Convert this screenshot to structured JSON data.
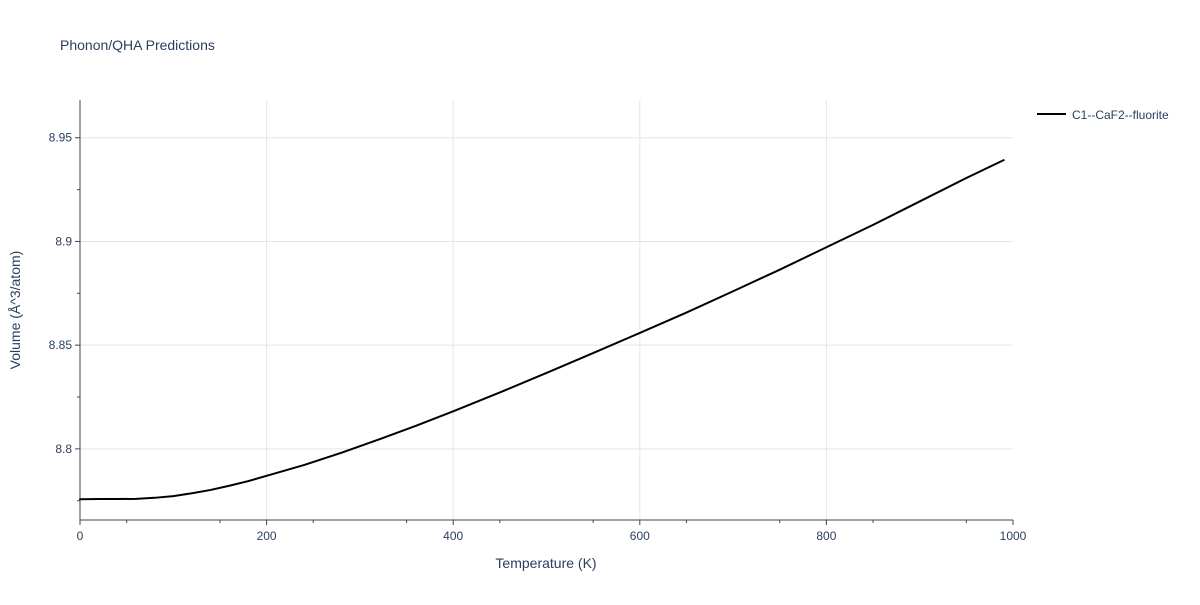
{
  "chart_data": {
    "type": "line",
    "title": "Phonon/QHA Predictions",
    "xlabel": "Temperature (K)",
    "ylabel": "Volume (Å^3/atom)",
    "xlim": [
      0,
      1000
    ],
    "ylim": [
      8.7657,
      8.9682
    ],
    "x_ticks": [
      0,
      200,
      400,
      600,
      800,
      1000
    ],
    "x_tick_labels": [
      "0",
      "200",
      "400",
      "600",
      "800",
      "1000"
    ],
    "y_ticks": [
      8.8,
      8.85,
      8.9,
      8.95
    ],
    "y_tick_labels": [
      "8.8",
      "8.85",
      "8.9",
      "8.95"
    ],
    "grid": true,
    "legend_position": "top-right",
    "colors": {
      "series": "#000000",
      "grid": "#e5e5e5",
      "axis": "#444444",
      "text": "#2a3f5f"
    },
    "series": [
      {
        "name": "C1--CaF2--fluorite",
        "x": [
          0,
          20,
          40,
          60,
          80,
          100,
          120,
          140,
          160,
          180,
          200,
          240,
          280,
          320,
          360,
          400,
          450,
          500,
          550,
          600,
          650,
          700,
          750,
          800,
          850,
          900,
          950,
          990
        ],
        "y": [
          8.7757,
          8.7758,
          8.7758,
          8.7759,
          8.7764,
          8.7772,
          8.7786,
          8.7802,
          8.7822,
          8.7844,
          8.787,
          8.7922,
          8.7981,
          8.8045,
          8.8111,
          8.8181,
          8.8272,
          8.8366,
          8.8462,
          8.8559,
          8.8657,
          8.876,
          8.8864,
          8.8972,
          8.908,
          8.9193,
          8.9306,
          8.9392
        ]
      }
    ]
  }
}
